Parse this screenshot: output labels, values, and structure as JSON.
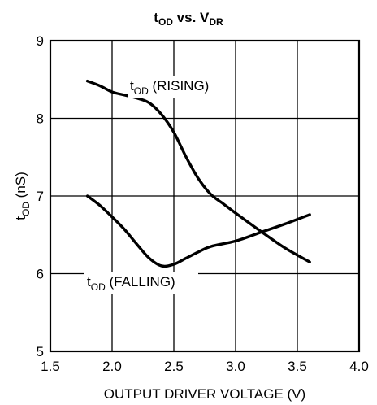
{
  "chart_data": {
    "type": "line",
    "title": {
      "main": "t",
      "sub1": "OD",
      "mid": " vs. V",
      "sub2": "DR"
    },
    "xlabel": "OUTPUT DRIVER VOLTAGE (V)",
    "ylabel": {
      "main": "t",
      "sub": "OD",
      "rest": " (nS)"
    },
    "xlim": [
      1.5,
      4.0
    ],
    "ylim": [
      5,
      9
    ],
    "xticks": [
      "1.5",
      "2.0",
      "2.5",
      "3.0",
      "3.5",
      "4.0"
    ],
    "yticks": [
      "5",
      "6",
      "7",
      "8",
      "9"
    ],
    "grid": true,
    "series": [
      {
        "name": {
          "main": "t",
          "sub": "OD",
          "rest": " (RISING)"
        },
        "color": "#000000",
        "x": [
          1.8,
          1.9,
          2.0,
          2.1,
          2.2,
          2.3,
          2.4,
          2.5,
          2.6,
          2.7,
          2.8,
          2.9,
          3.0,
          3.2,
          3.4,
          3.6
        ],
        "y": [
          8.48,
          8.42,
          8.34,
          8.3,
          8.26,
          8.2,
          8.05,
          7.82,
          7.5,
          7.22,
          7.02,
          6.9,
          6.78,
          6.55,
          6.33,
          6.15
        ]
      },
      {
        "name": {
          "main": "t",
          "sub": "OD",
          "rest": " (FALLING)"
        },
        "color": "#000000",
        "x": [
          1.8,
          1.9,
          2.0,
          2.1,
          2.2,
          2.3,
          2.4,
          2.5,
          2.6,
          2.7,
          2.8,
          3.0,
          3.2,
          3.4,
          3.6
        ],
        "y": [
          7.0,
          6.88,
          6.73,
          6.57,
          6.38,
          6.2,
          6.1,
          6.12,
          6.2,
          6.28,
          6.35,
          6.42,
          6.53,
          6.64,
          6.76
        ]
      }
    ]
  }
}
